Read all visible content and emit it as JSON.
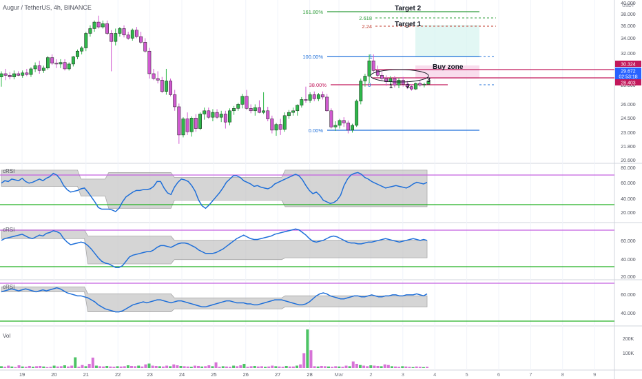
{
  "header": {
    "title": "Augur / TetherUS, 4h, BINANCE"
  },
  "price_axis": {
    "unit": "USDT",
    "ticks": [
      "40.000",
      "38.000",
      "36.000",
      "34.000",
      "32.000",
      "30.000",
      "28.000",
      "26.000",
      "24.500",
      "23.000",
      "21.800",
      "20.600"
    ],
    "badges": [
      {
        "value": "30.324",
        "color": "#c2185b"
      },
      {
        "value": "29.672",
        "color": "#2962ff"
      },
      {
        "value": "02:53:18",
        "color": "#2962ff"
      },
      {
        "value": "28.403",
        "color": "#c2185b"
      }
    ]
  },
  "x_axis": {
    "ticks": [
      "19",
      "20",
      "21",
      "22",
      "23",
      "24",
      "25",
      "26",
      "27",
      "28",
      "Mar",
      "2",
      "3",
      "4",
      "5",
      "6",
      "7",
      "8",
      "9"
    ]
  },
  "fib": {
    "levels": [
      {
        "label": "161.80%",
        "color": "#2e9c3a"
      },
      {
        "label": "100.00%",
        "color": "#1e6fd9"
      },
      {
        "label": "38.00%",
        "color": "#c2185b"
      },
      {
        "label": "0.00%",
        "color": "#1e6fd9"
      }
    ],
    "extensions": [
      {
        "label": "2.618",
        "color": "#2e9c3a"
      },
      {
        "label": "2.24",
        "color": "#c0392b"
      }
    ],
    "marker_1": "1",
    "marker_0": "0"
  },
  "annotations": {
    "target2": "Target 2",
    "target1": "Target 1",
    "buy_zone": "Buy zone",
    "wave_labels": [
      "1",
      "2",
      "3"
    ]
  },
  "panes": [
    {
      "label": "cRSI",
      "ticks": [
        "80.000",
        "60.000",
        "40.000",
        "20.000"
      ]
    },
    {
      "label": "cRSI",
      "ticks": [
        "60.000",
        "40.000",
        "20.000"
      ]
    },
    {
      "label": "cRSI",
      "ticks": [
        "60.000",
        "40.000"
      ]
    },
    {
      "label": "Vol",
      "ticks": [
        "200K",
        "100K"
      ]
    }
  ],
  "colors": {
    "up": "#26a69a",
    "up_candle": "#2eb84a",
    "down": "#d05ad0",
    "crsi_line": "#1e6fd9",
    "band_upper": "#c462e0",
    "band_lower": "#20b020"
  },
  "chart_data": {
    "type": "candlestick",
    "title": "Augur / TetherUS, 4h, BINANCE",
    "ylim": [
      20.6,
      40.0
    ],
    "candles": [
      [
        30.8,
        31.5,
        29.6,
        31.2
      ],
      [
        31.2,
        31.8,
        30.4,
        31.0
      ],
      [
        31.0,
        31.4,
        30.5,
        30.8
      ],
      [
        30.8,
        31.6,
        30.5,
        31.2
      ],
      [
        31.2,
        31.5,
        30.9,
        31.0
      ],
      [
        31.0,
        31.6,
        30.7,
        31.3
      ],
      [
        31.3,
        31.8,
        30.9,
        31.1
      ],
      [
        31.1,
        32.0,
        30.8,
        31.8
      ],
      [
        31.8,
        32.6,
        31.4,
        32.2
      ],
      [
        32.2,
        32.8,
        31.2,
        31.6
      ],
      [
        31.6,
        32.2,
        31.3,
        31.9
      ],
      [
        31.9,
        33.4,
        31.7,
        33.2
      ],
      [
        33.2,
        33.6,
        32.3,
        32.5
      ],
      [
        32.5,
        33.0,
        31.9,
        32.4
      ],
      [
        32.4,
        33.0,
        31.9,
        32.6
      ],
      [
        32.6,
        33.0,
        31.6,
        31.8
      ],
      [
        31.8,
        32.6,
        31.6,
        32.4
      ],
      [
        32.4,
        33.4,
        32.1,
        33.3
      ],
      [
        33.3,
        34.2,
        33.0,
        34.0
      ],
      [
        34.0,
        34.6,
        33.6,
        34.4
      ],
      [
        34.4,
        36.4,
        34.0,
        36.2
      ],
      [
        36.2,
        37.2,
        35.8,
        36.8
      ],
      [
        36.8,
        37.8,
        36.4,
        37.6
      ],
      [
        37.6,
        38.4,
        36.8,
        37.0
      ],
      [
        37.0,
        37.8,
        36.8,
        37.4
      ],
      [
        37.4,
        37.8,
        36.0,
        36.2
      ],
      [
        36.2,
        36.6,
        31.5,
        35.2
      ],
      [
        35.2,
        36.8,
        34.7,
        36.2
      ],
      [
        36.2,
        37.0,
        35.8,
        36.8
      ],
      [
        36.8,
        37.2,
        35.7,
        36.0
      ],
      [
        36.0,
        36.4,
        35.4,
        35.6
      ],
      [
        35.6,
        36.8,
        35.3,
        36.6
      ],
      [
        36.6,
        37.0,
        35.6,
        35.8
      ],
      [
        35.8,
        36.4,
        34.9,
        35.1
      ],
      [
        35.1,
        35.6,
        33.8,
        34.0
      ],
      [
        34.0,
        34.4,
        30.6,
        31.2
      ],
      [
        31.2,
        31.8,
        30.4,
        30.6
      ],
      [
        30.6,
        31.5,
        30.0,
        30.4
      ],
      [
        30.4,
        30.8,
        28.8,
        29.0
      ],
      [
        29.0,
        31.8,
        28.6,
        30.3
      ],
      [
        30.3,
        30.6,
        28.4,
        28.6
      ],
      [
        28.6,
        29.2,
        26.6,
        27.1
      ],
      [
        27.1,
        27.5,
        22.5,
        23.6
      ],
      [
        23.6,
        25.8,
        23.3,
        25.6
      ],
      [
        25.6,
        26.4,
        23.6,
        24.0
      ],
      [
        24.0,
        25.9,
        23.4,
        25.7
      ],
      [
        25.7,
        26.2,
        24.0,
        24.4
      ],
      [
        24.4,
        26.4,
        24.2,
        26.2
      ],
      [
        26.2,
        27.0,
        25.5,
        26.6
      ],
      [
        26.6,
        27.0,
        25.6,
        25.8
      ],
      [
        25.8,
        26.8,
        25.3,
        26.4
      ],
      [
        26.4,
        26.8,
        25.6,
        25.8
      ],
      [
        25.8,
        26.6,
        25.2,
        26.2
      ],
      [
        26.2,
        26.6,
        24.4,
        25.2
      ],
      [
        25.2,
        26.9,
        24.8,
        26.6
      ],
      [
        26.6,
        27.2,
        26.1,
        26.9
      ],
      [
        26.9,
        27.6,
        26.6,
        27.4
      ],
      [
        27.4,
        28.7,
        26.9,
        28.4
      ],
      [
        28.4,
        29.2,
        26.7,
        26.9
      ],
      [
        26.9,
        27.4,
        26.3,
        26.6
      ],
      [
        26.6,
        27.4,
        26.0,
        27.0
      ],
      [
        27.0,
        27.9,
        26.3,
        26.4
      ],
      [
        26.4,
        28.9,
        26.2,
        26.6
      ],
      [
        26.6,
        27.1,
        25.3,
        25.6
      ],
      [
        25.6,
        26.0,
        23.8,
        24.2
      ],
      [
        24.2,
        25.1,
        23.5,
        24.9
      ],
      [
        24.9,
        25.6,
        23.6,
        24.3
      ],
      [
        24.3,
        26.4,
        24.0,
        26.0
      ],
      [
        26.0,
        26.7,
        25.6,
        26.4
      ],
      [
        26.4,
        27.0,
        26.0,
        26.6
      ],
      [
        26.6,
        27.4,
        26.0,
        27.3
      ],
      [
        27.3,
        28.3,
        27.0,
        28.0
      ],
      [
        28.0,
        29.6,
        27.6,
        27.9
      ],
      [
        27.9,
        28.9,
        27.6,
        28.6
      ],
      [
        28.6,
        29.0,
        27.8,
        28.1
      ],
      [
        28.1,
        28.8,
        27.8,
        28.6
      ],
      [
        28.6,
        29.0,
        28.0,
        28.3
      ],
      [
        28.3,
        28.7,
        26.5,
        26.6
      ],
      [
        26.6,
        26.9,
        24.4,
        24.6
      ],
      [
        24.6,
        25.3,
        24.1,
        24.8
      ],
      [
        24.8,
        25.6,
        24.4,
        25.4
      ],
      [
        25.4,
        25.8,
        24.6,
        25.1
      ],
      [
        25.1,
        25.4,
        23.8,
        24.2
      ],
      [
        24.2,
        25.0,
        23.9,
        24.8
      ],
      [
        24.8,
        28.0,
        24.6,
        27.8
      ],
      [
        27.8,
        30.6,
        27.4,
        30.3
      ],
      [
        30.3,
        31.2,
        29.6,
        30.9
      ],
      [
        30.9,
        33.6,
        30.0,
        32.8
      ],
      [
        32.8,
        33.6,
        31.4,
        31.6
      ],
      [
        31.6,
        32.2,
        30.8,
        31.0
      ],
      [
        31.0,
        31.4,
        30.4,
        30.6
      ],
      [
        30.6,
        31.0,
        29.7,
        30.2
      ],
      [
        30.2,
        30.9,
        29.9,
        30.6
      ],
      [
        30.6,
        30.9,
        29.5,
        29.8
      ],
      [
        29.8,
        30.7,
        29.4,
        30.4
      ],
      [
        30.4,
        30.8,
        29.6,
        29.9
      ],
      [
        29.9,
        30.3,
        29.3,
        29.6
      ],
      [
        29.6,
        29.9,
        29.1,
        29.3
      ],
      [
        29.3,
        30.1,
        29.2,
        30.0
      ],
      [
        30.0,
        30.3,
        29.6,
        29.8
      ],
      [
        29.8,
        30.1,
        29.5,
        29.9
      ],
      [
        29.9,
        30.4,
        29.8,
        30.3
      ]
    ],
    "crsi": [
      [
        61,
        64,
        63,
        66,
        65,
        64,
        67,
        63,
        61,
        62,
        64,
        66,
        64,
        67,
        69,
        73,
        71,
        66,
        58,
        53,
        50,
        51,
        52,
        54,
        55,
        50,
        44,
        38,
        31,
        29,
        29,
        29,
        28,
        26,
        30,
        38,
        44,
        47,
        50,
        52,
        52,
        53,
        53,
        54,
        57,
        63,
        63,
        55,
        49,
        47,
        56,
        62,
        66,
        65,
        63,
        58,
        51,
        40,
        33,
        30,
        34,
        39,
        44,
        49,
        55,
        62,
        66,
        70,
        70,
        68,
        64,
        62,
        60,
        57,
        58,
        56,
        55,
        54,
        56,
        60,
        62,
        64,
        66,
        68,
        70,
        72,
        70,
        65,
        58,
        52,
        48,
        50,
        46,
        40,
        38,
        36,
        37,
        40,
        46,
        58,
        66,
        71,
        73,
        74,
        72,
        68,
        66,
        63,
        61,
        59,
        57,
        55,
        56,
        57,
        58,
        57,
        56,
        55,
        57,
        60,
        62,
        61,
        60,
        62
      ],
      [
        60,
        62,
        63,
        64,
        65,
        66,
        67,
        65,
        63,
        62,
        64,
        66,
        65,
        68,
        69,
        71,
        70,
        68,
        62,
        58,
        55,
        56,
        57,
        58,
        57,
        54,
        50,
        45,
        40,
        36,
        34,
        33,
        31,
        29,
        29,
        31,
        36,
        41,
        43,
        44,
        45,
        46,
        47,
        47,
        49,
        52,
        54,
        54,
        53,
        52,
        54,
        56,
        57,
        57,
        56,
        54,
        52,
        49,
        47,
        45,
        45,
        45,
        46,
        48,
        50,
        53,
        56,
        59,
        62,
        64,
        66,
        64,
        62,
        61,
        61,
        62,
        63,
        64,
        65,
        67,
        68,
        69,
        70,
        71,
        72,
        73,
        72,
        69,
        66,
        62,
        59,
        58,
        59,
        60,
        62,
        64,
        65,
        64,
        62,
        60,
        58,
        57,
        57,
        56,
        56,
        57,
        58,
        58,
        59,
        60,
        61,
        62,
        61,
        60,
        59,
        58,
        59,
        60,
        61,
        62,
        61,
        60,
        61,
        60
      ],
      [
        62,
        63,
        64,
        65,
        64,
        63,
        64,
        65,
        64,
        63,
        62,
        63,
        64,
        63,
        64,
        65,
        66,
        65,
        63,
        61,
        60,
        59,
        58,
        58,
        57,
        56,
        54,
        52,
        49,
        47,
        45,
        44,
        43,
        42,
        42,
        43,
        45,
        47,
        49,
        50,
        51,
        52,
        51,
        52,
        53,
        54,
        54,
        53,
        52,
        51,
        52,
        53,
        53,
        52,
        51,
        50,
        49,
        48,
        47,
        47,
        48,
        49,
        50,
        51,
        52,
        53,
        53,
        52,
        51,
        51,
        51,
        50,
        50,
        49,
        49,
        50,
        51,
        52,
        53,
        54,
        54,
        54,
        53,
        52,
        51,
        50,
        49,
        49,
        50,
        52,
        55,
        58,
        60,
        61,
        60,
        58,
        57,
        56,
        55,
        55,
        56,
        57,
        58,
        58,
        57,
        57,
        58,
        59,
        58,
        57,
        57,
        58,
        58,
        59,
        59,
        58,
        58,
        59,
        59,
        59,
        60,
        59,
        58,
        60
      ]
    ],
    "volume": [
      6,
      4,
      8,
      5,
      3,
      9,
      5,
      4,
      7,
      4,
      6,
      7,
      5,
      3,
      4,
      8,
      5,
      6,
      9,
      5,
      8,
      5,
      4,
      10,
      6,
      14,
      35,
      8,
      6,
      5,
      7,
      5,
      4,
      6,
      5,
      6,
      9,
      7,
      6,
      8,
      5,
      12,
      15,
      8,
      7,
      6,
      5,
      8,
      6,
      12,
      9,
      7,
      6,
      5,
      4,
      8,
      7,
      5,
      6,
      9,
      6,
      5,
      4,
      6,
      5,
      4,
      8,
      6,
      9,
      5,
      4,
      6,
      7,
      5,
      6,
      4,
      5,
      8,
      6,
      5,
      4,
      7,
      5,
      5,
      8,
      12,
      20,
      10,
      8,
      6,
      5,
      7,
      6,
      5,
      4,
      6,
      5,
      4,
      8,
      6,
      22,
      14,
      10,
      8,
      6,
      9,
      8,
      7,
      6,
      12,
      10,
      6,
      5,
      4,
      6,
      5,
      4,
      3,
      5,
      4,
      3,
      4
    ],
    "volume_spikes": {
      "21": 36,
      "61": 19,
      "69": 14,
      "87": 130,
      "88": 60,
      "86": 50
    }
  }
}
